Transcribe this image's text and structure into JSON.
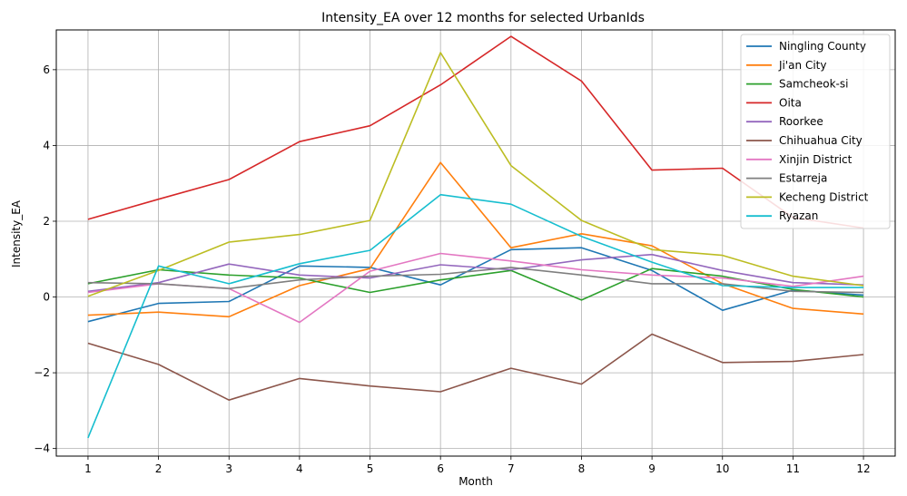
{
  "chart_data": {
    "type": "line",
    "title": "Intensity_EA over 12 months for selected UrbanIds",
    "xlabel": "Month",
    "ylabel": "Intensity_EA",
    "x": [
      1,
      2,
      3,
      4,
      5,
      6,
      7,
      8,
      9,
      10,
      11,
      12
    ],
    "xlim": [
      0.55,
      12.45
    ],
    "ylim": [
      -4.2,
      7.05
    ],
    "yticks": [
      -4,
      -2,
      0,
      2,
      4,
      6
    ],
    "yticklabels": [
      "−4",
      "−2",
      "0",
      "2",
      "4",
      "6"
    ],
    "grid": true,
    "legend_position": "top-right",
    "series": [
      {
        "name": "Ningling County",
        "color": "#1f77b4",
        "values": [
          -0.65,
          -0.17,
          -0.12,
          0.82,
          0.78,
          0.32,
          1.25,
          1.3,
          0.7,
          -0.35,
          0.18,
          0.05
        ]
      },
      {
        "name": "Ji'an City",
        "color": "#ff7f0e",
        "values": [
          -0.48,
          -0.4,
          -0.52,
          0.3,
          0.75,
          3.55,
          1.3,
          1.67,
          1.35,
          0.35,
          -0.3,
          -0.45
        ]
      },
      {
        "name": "Samcheok-si",
        "color": "#2ca02c",
        "values": [
          0.35,
          0.72,
          0.58,
          0.5,
          0.12,
          0.45,
          0.7,
          -0.08,
          0.75,
          0.55,
          0.2,
          0.0
        ]
      },
      {
        "name": "Oita",
        "color": "#d62728",
        "values": [
          2.05,
          2.58,
          3.1,
          4.1,
          4.52,
          5.6,
          6.88,
          5.7,
          3.35,
          3.4,
          2.1,
          1.82
        ]
      },
      {
        "name": "Roorkee",
        "color": "#9467bd",
        "values": [
          0.15,
          0.38,
          0.87,
          0.58,
          0.5,
          0.85,
          0.72,
          0.98,
          1.12,
          0.7,
          0.38,
          0.32
        ]
      },
      {
        "name": "Chihuahua City",
        "color": "#8c564b",
        "values": [
          -1.22,
          -1.78,
          -2.72,
          -2.15,
          -2.35,
          -2.5,
          -1.88,
          -2.3,
          -0.98,
          -1.73,
          -1.7,
          -1.52
        ]
      },
      {
        "name": "Xinjin District",
        "color": "#e377c2",
        "values": [
          0.12,
          0.35,
          0.22,
          -0.67,
          0.68,
          1.15,
          0.95,
          0.72,
          0.58,
          0.5,
          0.28,
          0.55
        ]
      },
      {
        "name": "Estarreja",
        "color": "#7f7f7f",
        "values": [
          0.38,
          0.35,
          0.22,
          0.45,
          0.55,
          0.6,
          0.78,
          0.58,
          0.35,
          0.35,
          0.15,
          0.12
        ]
      },
      {
        "name": "Kecheng District",
        "color": "#bcbd22",
        "values": [
          0.02,
          0.7,
          1.45,
          1.65,
          2.02,
          6.45,
          3.47,
          2.02,
          1.25,
          1.1,
          0.55,
          0.3
        ]
      },
      {
        "name": "Ryazan",
        "color": "#17becf",
        "values": [
          -3.72,
          0.82,
          0.35,
          0.88,
          1.23,
          2.7,
          2.45,
          1.6,
          0.92,
          0.3,
          0.25,
          0.25
        ]
      }
    ]
  }
}
